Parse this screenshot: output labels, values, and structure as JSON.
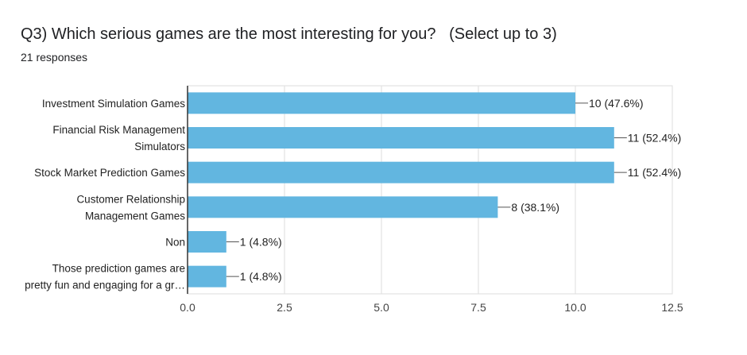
{
  "chart_data": {
    "type": "bar",
    "orientation": "horizontal",
    "title": "Q3) Which serious games are the most interesting for you?   (Select up to 3)",
    "subtitle": "21 responses",
    "categories": [
      [
        "Investment Simulation Games"
      ],
      [
        "Financial Risk Management",
        "Simulators"
      ],
      [
        "Stock Market Prediction Games"
      ],
      [
        "Customer Relationship",
        "Management Games"
      ],
      [
        "Non"
      ],
      [
        "Those prediction games are",
        "pretty fun and engaging for a gr…"
      ]
    ],
    "values": [
      10,
      11,
      11,
      8,
      1,
      1
    ],
    "data_labels": [
      "10 (47.6%)",
      "11 (52.4%)",
      "11 (52.4%)",
      "8 (38.1%)",
      "1 (4.8%)",
      "1 (4.8%)"
    ],
    "xlim": [
      0,
      12.5
    ],
    "xticks": [
      0,
      2.5,
      5,
      7.5,
      10,
      12.5
    ],
    "xtick_labels": [
      "0.0",
      "2.5",
      "5.0",
      "7.5",
      "10.0",
      "12.5"
    ],
    "grid": true,
    "bar_color": "#62b6e0"
  }
}
